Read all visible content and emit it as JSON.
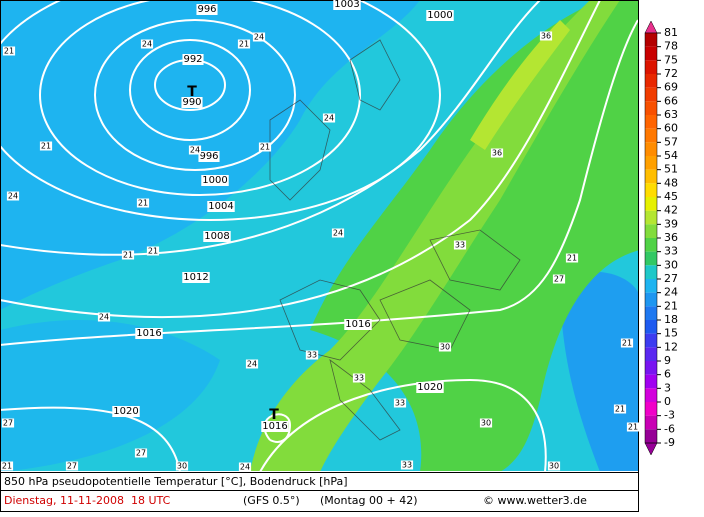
{
  "map": {
    "isobar_labels": [
      "996",
      "1000",
      "1003",
      "992",
      "990",
      "996",
      "1000",
      "1004",
      "1008",
      "1012",
      "1016",
      "1016",
      "1020",
      "1020",
      "1016"
    ],
    "low_markers": [
      "T",
      "T"
    ],
    "temperature_labels": [
      "21",
      "24",
      "21",
      "24",
      "21",
      "24",
      "21",
      "24",
      "21",
      "24",
      "21",
      "24",
      "27",
      "30",
      "33",
      "36",
      "36",
      "33",
      "30",
      "33",
      "33",
      "30",
      "33",
      "27",
      "21",
      "21",
      "21",
      "21",
      "24",
      "33",
      "30",
      "27",
      "24",
      "21",
      "27",
      "21",
      "24"
    ]
  },
  "colorbar": {
    "ticks": [
      81,
      78,
      75,
      72,
      69,
      66,
      63,
      60,
      57,
      54,
      51,
      48,
      45,
      42,
      39,
      36,
      33,
      30,
      27,
      24,
      21,
      18,
      15,
      12,
      9,
      6,
      3,
      0,
      -3,
      -6,
      -9
    ],
    "colors": [
      "#e8308c",
      "#b40000",
      "#c80000",
      "#dc1400",
      "#e82800",
      "#f03c00",
      "#f85000",
      "#ff6400",
      "#ff7800",
      "#ff8c00",
      "#ffa000",
      "#ffbe00",
      "#ffdc00",
      "#e6f000",
      "#b4e632",
      "#82dc3c",
      "#50d246",
      "#32c864",
      "#1ec8c8",
      "#1eb4f0",
      "#1e96f0",
      "#1e78f0",
      "#1e5af0",
      "#3c3cf0",
      "#5a28f0",
      "#7814f0",
      "#a000f0",
      "#d200dc",
      "#f000c8",
      "#c800b4",
      "#960096"
    ]
  },
  "footer": {
    "title": "850 hPa pseudopotentielle Temperatur [°C], Bodendruck [hPa]",
    "date": "Dienstag, 11-11-2008  18 UTC",
    "model": "(GFS 0.5°)",
    "run": "(Montag 00 + 42)",
    "source": "© www.wetter3.de"
  }
}
